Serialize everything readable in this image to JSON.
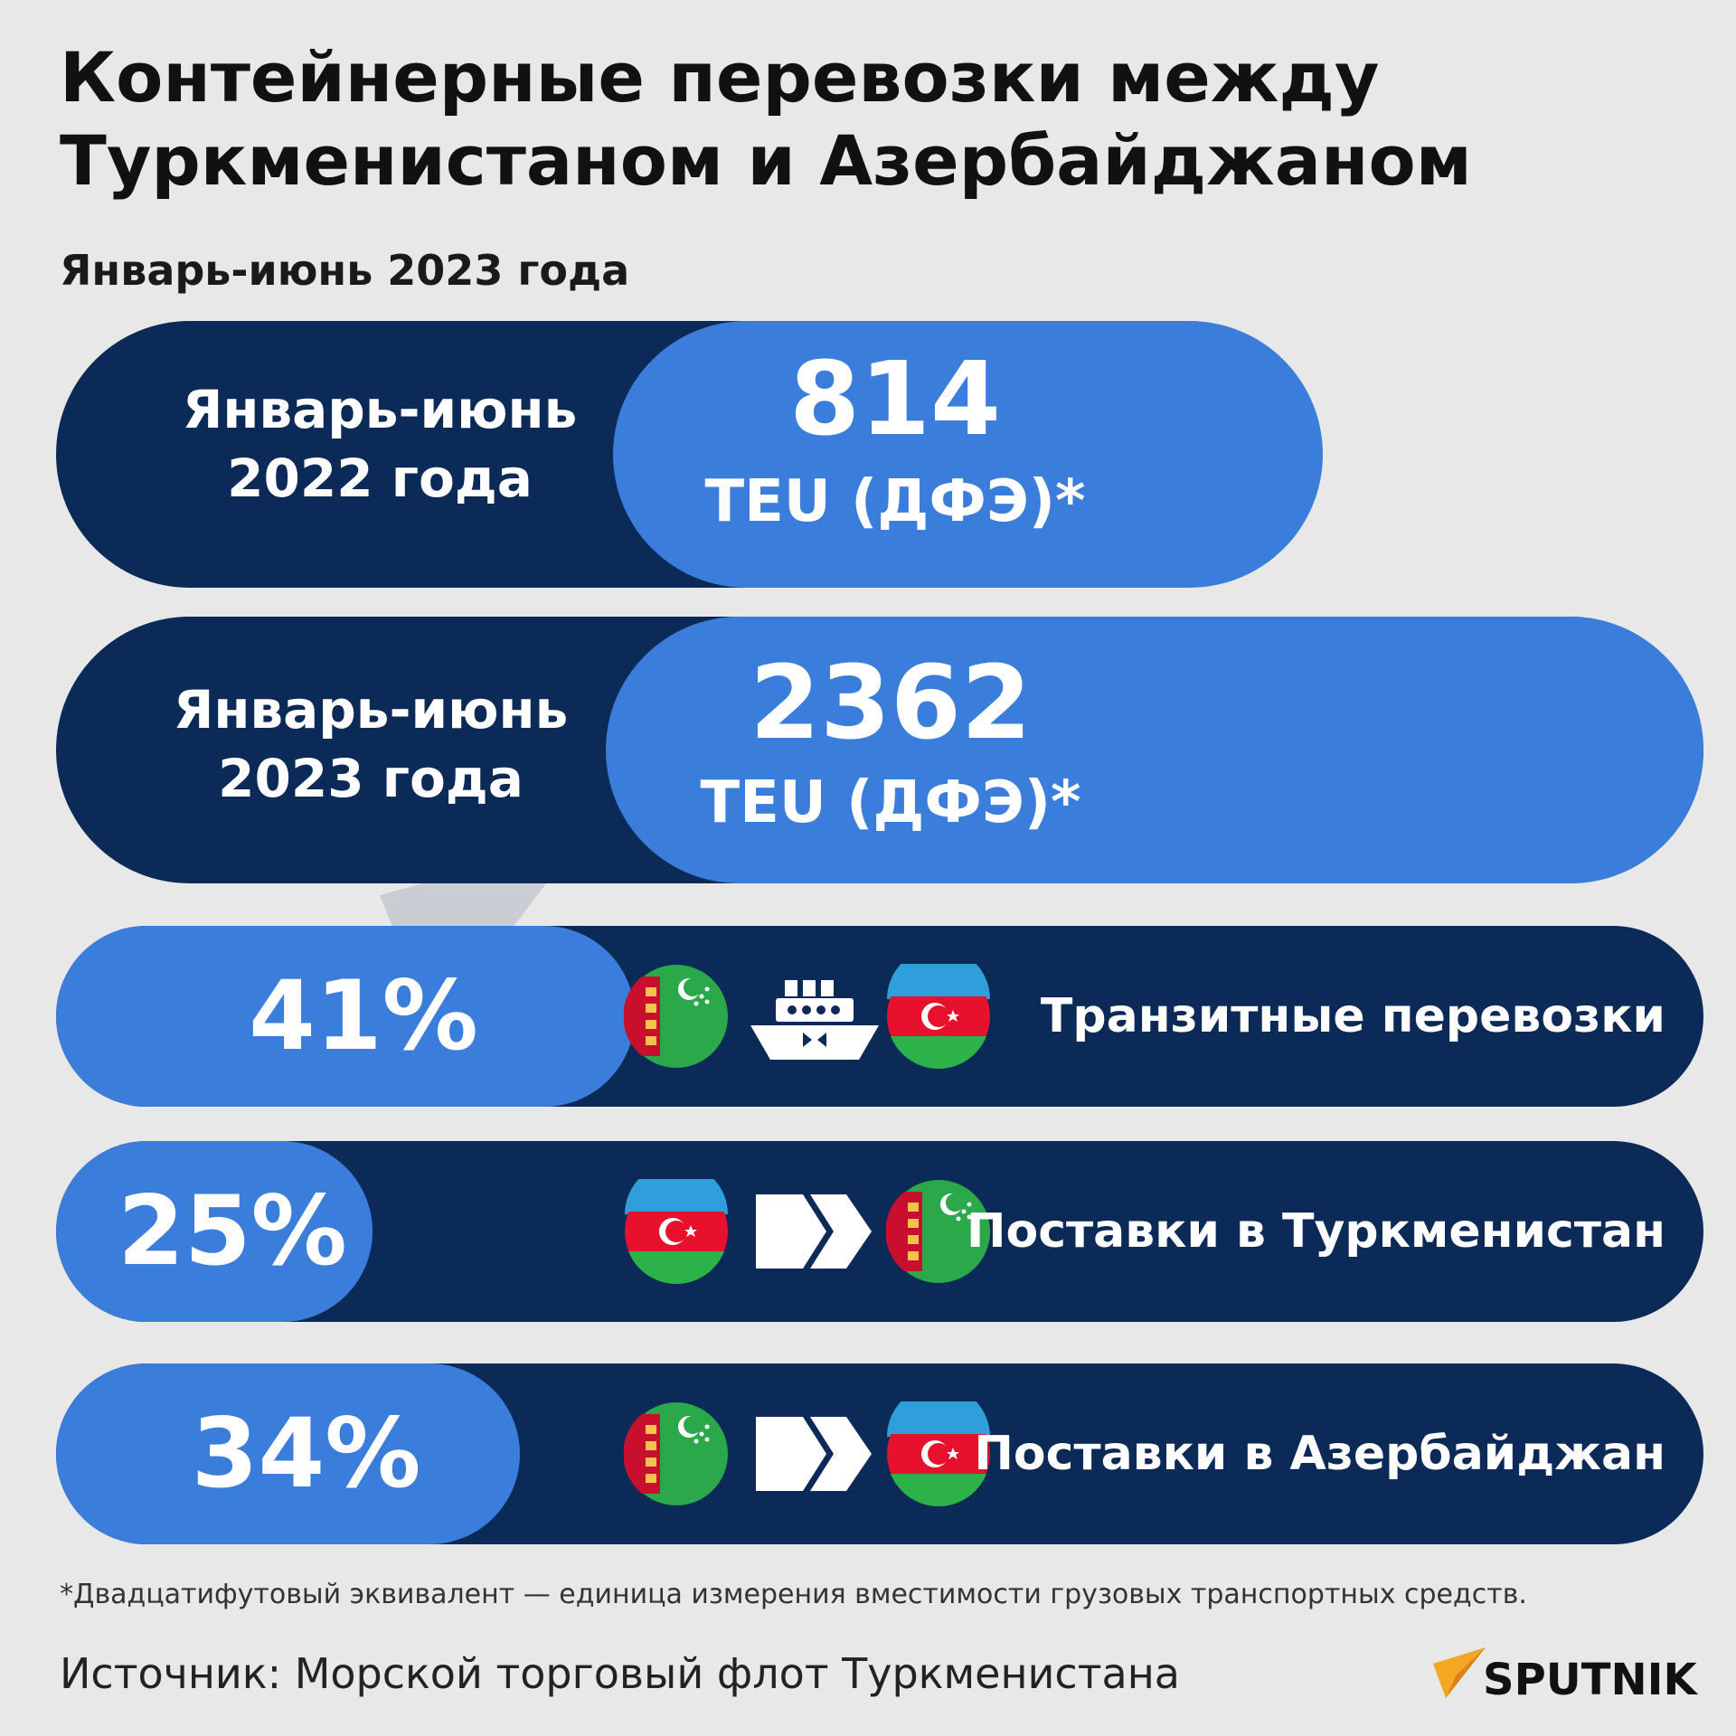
{
  "title_lines": [
    "Контейнерные перевозки между",
    "Туркменистаном и Азербайджаном"
  ],
  "subtitle": "Январь-июнь 2023 года",
  "chart_data": [
    {
      "type": "bar",
      "categories": [
        "Январь-июнь 2022 года",
        "Январь-июнь 2023 года"
      ],
      "category_lines": [
        [
          "Январь-июнь",
          "2022 года"
        ],
        [
          "Январь-июнь",
          "2023 года"
        ]
      ],
      "values": [
        814,
        2362
      ],
      "value_labels": [
        "814",
        "2362"
      ],
      "unit": "TEU (ДФЭ)*"
    },
    {
      "type": "bar",
      "categories": [
        "Транзитные перевозки",
        "Поставки в Туркменистан",
        "Поставки в Азербайджан"
      ],
      "values": [
        41,
        25,
        34
      ],
      "value_labels": [
        "41%",
        "25%",
        "34%"
      ],
      "icons": [
        [
          "turkmenistan-flag-icon",
          "ship-icon",
          "azerbaijan-flag-icon"
        ],
        [
          "azerbaijan-flag-icon",
          "double-chevron-right-icon",
          "turkmenistan-flag-icon"
        ],
        [
          "turkmenistan-flag-icon",
          "double-chevron-right-icon",
          "azerbaijan-flag-icon"
        ]
      ]
    }
  ],
  "colors": {
    "dark_navy": "#0c2a57",
    "bar_blue": "#3b7ddb",
    "background": "#e8e8e8",
    "tm_green": "#2aa84a",
    "tm_red": "#c8102e",
    "az_blue": "#2f9fdb",
    "az_red": "#e8112d",
    "az_green": "#2db24a"
  },
  "footnote": "*Двадцатифутовый эквивалент — единица измерения вместимости грузовых транспортных средств.",
  "source": "Источник: Морской торговый флот Туркменистана",
  "logo_text": "SPUTNIK"
}
